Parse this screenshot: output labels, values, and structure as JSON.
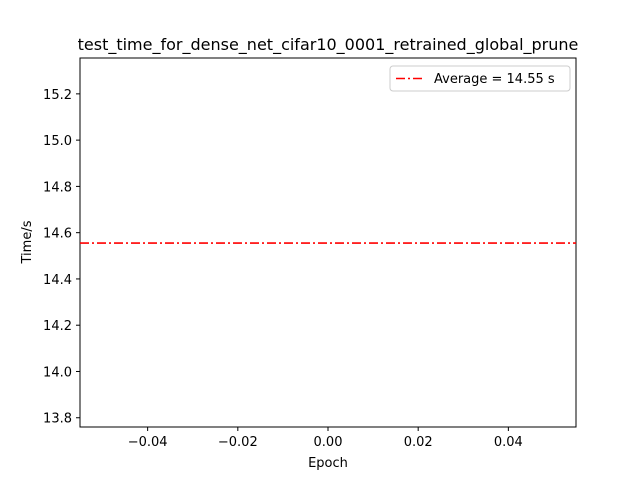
{
  "chart_data": {
    "type": "line",
    "title": "test_time_for_dense_net_cifar10_0001_retrained_global_prune",
    "xlabel": "Epoch",
    "ylabel": "Time/s",
    "xlim": [
      -0.055,
      0.055
    ],
    "ylim": [
      13.76,
      15.355
    ],
    "xticks": [
      -0.04,
      -0.02,
      0.0,
      0.02,
      0.04
    ],
    "xtick_labels": [
      "−0.04",
      "−0.02",
      "0.00",
      "0.02",
      "0.04"
    ],
    "yticks": [
      13.8,
      14.0,
      14.2,
      14.4,
      14.6,
      14.8,
      15.0,
      15.2
    ],
    "ytick_labels": [
      "13.8",
      "14.0",
      "14.2",
      "14.4",
      "14.6",
      "14.8",
      "15.0",
      "15.2"
    ],
    "grid": false,
    "legend_position": "top-right",
    "series": [
      {
        "name": "Average = 14.55 s",
        "kind": "horizontal-line",
        "y": 14.555,
        "color": "#ff0000",
        "style": "dash-dot"
      }
    ]
  }
}
